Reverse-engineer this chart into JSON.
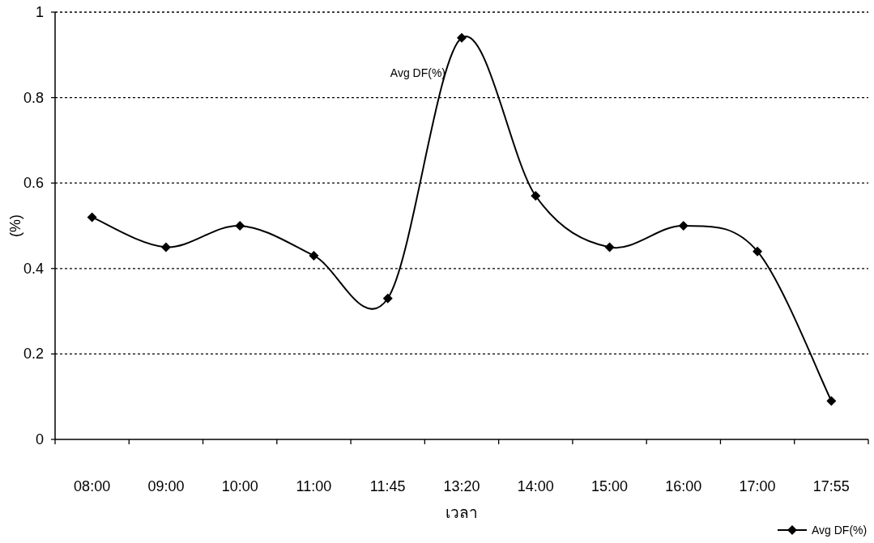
{
  "chart_data": {
    "type": "line",
    "xlabel": "เวลา",
    "ylabel": "(%)",
    "categories": [
      "08:00",
      "09:00",
      "10:00",
      "11:00",
      "11:45",
      "13:20",
      "14:00",
      "15:00",
      "16:00",
      "17:00",
      "17:55"
    ],
    "series": [
      {
        "name": "Avg DF(%)",
        "color": "#000000",
        "values": [
          0.52,
          0.45,
          0.5,
          0.43,
          0.33,
          0.94,
          0.57,
          0.45,
          0.5,
          0.44,
          0.09
        ]
      }
    ],
    "ylim": [
      0,
      1
    ],
    "yticks": [
      0,
      0.2,
      0.4,
      0.6,
      0.8,
      1
    ],
    "grid": "y",
    "legend": "bottom right",
    "marker": "diamond",
    "line_style": "solid",
    "annotations": [
      {
        "text": "Avg DF(%)",
        "x": "13:20",
        "y": 0.94
      }
    ]
  }
}
